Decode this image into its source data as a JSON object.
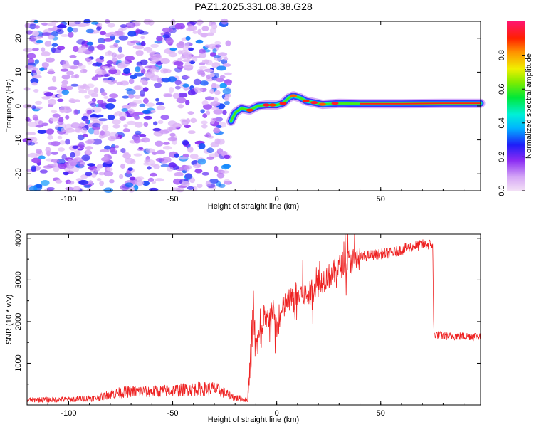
{
  "title": "PAZ1.2025.331.08.38.G28",
  "chart_data": [
    {
      "type": "heatmap",
      "xlabel": "Height of straight line (km)",
      "ylabel": "Frequency (Hz)",
      "xlim": [
        -120,
        98
      ],
      "ylim": [
        -25,
        25
      ],
      "xticks": [
        -100,
        -50,
        0,
        50
      ],
      "xtick_labels": [
        "-100",
        "-50",
        "0",
        "50"
      ],
      "yticks": [
        -20,
        -10,
        0,
        10,
        20
      ],
      "ytick_labels": [
        "-20",
        "-10",
        "0",
        "10",
        "20"
      ],
      "colorbar": {
        "label": "Normalized spectral amplitude",
        "range": [
          0,
          1
        ],
        "ticks": [
          0.0,
          0.2,
          0.4,
          0.6,
          0.8
        ],
        "tick_labels": [
          "0.0",
          "0.2",
          "0.4",
          "0.6",
          "0.8"
        ],
        "colormap": "hsv",
        "position": "right"
      },
      "noise_region": {
        "x": [
          -120,
          -23
        ],
        "y": [
          -25,
          25
        ],
        "amplitude": [
          0.05,
          0.35
        ]
      },
      "ridge": [
        {
          "x": -22,
          "y": -4.5
        },
        {
          "x": -20,
          "y": -2.0
        },
        {
          "x": -17,
          "y": -0.7
        },
        {
          "x": -13,
          "y": -1.2
        },
        {
          "x": -9,
          "y": 0.0
        },
        {
          "x": -5,
          "y": 0.3
        },
        {
          "x": 0,
          "y": 0.3
        },
        {
          "x": 3,
          "y": 0.8
        },
        {
          "x": 6,
          "y": 2.5
        },
        {
          "x": 8,
          "y": 3.0
        },
        {
          "x": 11,
          "y": 2.5
        },
        {
          "x": 14,
          "y": 1.5
        },
        {
          "x": 18,
          "y": 1.0
        },
        {
          "x": 22,
          "y": 0.5
        },
        {
          "x": 30,
          "y": 0.8
        },
        {
          "x": 40,
          "y": 0.7
        },
        {
          "x": 60,
          "y": 0.7
        },
        {
          "x": 80,
          "y": 0.8
        },
        {
          "x": 98,
          "y": 0.8
        }
      ]
    },
    {
      "type": "line",
      "xlabel": "Height of straight line (km)",
      "ylabel": "SNR (10 * v/v)",
      "xlim": [
        -120,
        98
      ],
      "ylim": [
        0,
        4100
      ],
      "xticks": [
        -100,
        -50,
        0,
        50
      ],
      "xtick_labels": [
        "-100",
        "-50",
        "0",
        "50"
      ],
      "yticks": [
        1000,
        2000,
        3000,
        4000
      ],
      "ytick_labels": [
        "1000",
        "2000",
        "3000",
        "4000"
      ],
      "color": "#ee2222",
      "series": [
        {
          "points": [
            [
              -120,
              100
            ],
            [
              -100,
              110
            ],
            [
              -85,
              150
            ],
            [
              -80,
              230
            ],
            [
              -70,
              280
            ],
            [
              -60,
              280
            ],
            [
              -50,
              300
            ],
            [
              -40,
              330
            ],
            [
              -30,
              340
            ],
            [
              -25,
              250
            ],
            [
              -20,
              150
            ],
            [
              -14,
              100
            ],
            [
              -12,
              1400
            ],
            [
              -11,
              2300
            ],
            [
              -10,
              1500
            ],
            [
              -8,
              1600
            ],
            [
              -5,
              2000
            ],
            [
              -2,
              2300
            ],
            [
              0,
              1800
            ],
            [
              3,
              2300
            ],
            [
              5,
              2500
            ],
            [
              8,
              2500
            ],
            [
              12,
              2700
            ],
            [
              15,
              2600
            ],
            [
              18,
              2800
            ],
            [
              22,
              3000
            ],
            [
              27,
              3150
            ],
            [
              32,
              3400
            ],
            [
              37,
              3500
            ],
            [
              45,
              3600
            ],
            [
              55,
              3650
            ],
            [
              65,
              3800
            ],
            [
              70,
              3850
            ],
            [
              75,
              3850
            ],
            [
              75.5,
              1700
            ],
            [
              80,
              1650
            ],
            [
              90,
              1650
            ],
            [
              98,
              1650
            ]
          ]
        }
      ]
    }
  ]
}
